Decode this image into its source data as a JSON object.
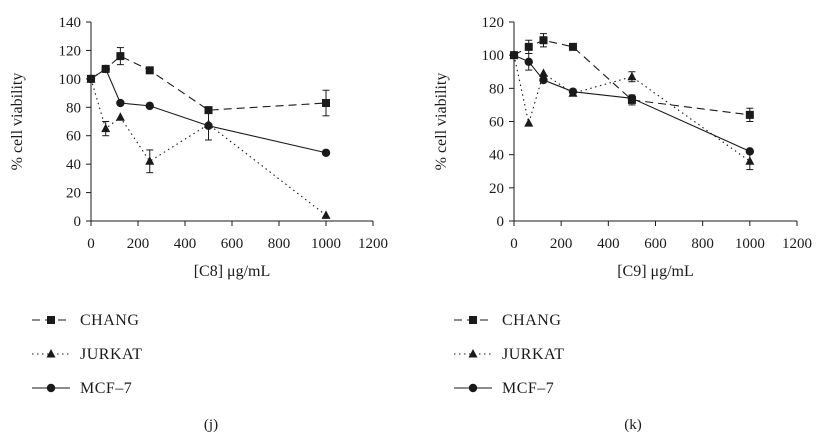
{
  "chart_data": [
    {
      "type": "line",
      "panel_label": "(j)",
      "xlabel": "[C8] μg/mL",
      "ylabel": "% cell viability",
      "xlim": [
        0,
        1200
      ],
      "ylim": [
        0,
        140
      ],
      "xticks": [
        0,
        200,
        400,
        600,
        800,
        1000,
        1200
      ],
      "yticks": [
        0,
        20,
        40,
        60,
        80,
        100,
        120,
        140
      ],
      "grid": false,
      "legend": "below",
      "series": [
        {
          "name": "CHANG",
          "style": "dashed",
          "marker": "square",
          "points": [
            {
              "x": 0,
              "y": 100,
              "err": 0
            },
            {
              "x": 62.5,
              "y": 107,
              "err": 2
            },
            {
              "x": 125,
              "y": 116,
              "err": 6
            },
            {
              "x": 250,
              "y": 106,
              "err": 0
            },
            {
              "x": 500,
              "y": 78,
              "err": 0
            },
            {
              "x": 1000,
              "y": 83,
              "err": 9
            }
          ]
        },
        {
          "name": "JURKAT",
          "style": "dotted",
          "marker": "triangle",
          "points": [
            {
              "x": 0,
              "y": 100,
              "err": 0
            },
            {
              "x": 62.5,
              "y": 65,
              "err": 5
            },
            {
              "x": 125,
              "y": 73,
              "err": 0
            },
            {
              "x": 250,
              "y": 42,
              "err": 8
            },
            {
              "x": 500,
              "y": 68,
              "err": 0
            },
            {
              "x": 1000,
              "y": 4,
              "err": 0
            }
          ]
        },
        {
          "name": "MCF–7",
          "style": "solid",
          "marker": "circle",
          "points": [
            {
              "x": 0,
              "y": 100,
              "err": 0
            },
            {
              "x": 62.5,
              "y": 107,
              "err": 0
            },
            {
              "x": 125,
              "y": 83,
              "err": 0
            },
            {
              "x": 250,
              "y": 81,
              "err": 0
            },
            {
              "x": 500,
              "y": 67,
              "err": 10
            },
            {
              "x": 1000,
              "y": 48,
              "err": 0
            }
          ]
        }
      ]
    },
    {
      "type": "line",
      "panel_label": "(k)",
      "xlabel": "[C9] μg/mL",
      "ylabel": "% cell viability",
      "xlim": [
        0,
        1200
      ],
      "ylim": [
        0,
        120
      ],
      "xticks": [
        0,
        200,
        400,
        600,
        800,
        1000,
        1200
      ],
      "yticks": [
        0,
        20,
        40,
        60,
        80,
        100,
        120
      ],
      "grid": false,
      "legend": "below",
      "series": [
        {
          "name": "CHANG",
          "style": "dashed",
          "marker": "square",
          "points": [
            {
              "x": 0,
              "y": 100,
              "err": 0
            },
            {
              "x": 62.5,
              "y": 105,
              "err": 4
            },
            {
              "x": 125,
              "y": 109,
              "err": 4
            },
            {
              "x": 250,
              "y": 105,
              "err": 0
            },
            {
              "x": 500,
              "y": 73,
              "err": 3
            },
            {
              "x": 1000,
              "y": 64,
              "err": 4
            }
          ]
        },
        {
          "name": "JURKAT",
          "style": "dotted",
          "marker": "triangle",
          "points": [
            {
              "x": 0,
              "y": 100,
              "err": 0
            },
            {
              "x": 62.5,
              "y": 59,
              "err": 0
            },
            {
              "x": 125,
              "y": 89,
              "err": 0
            },
            {
              "x": 250,
              "y": 77,
              "err": 0
            },
            {
              "x": 500,
              "y": 87,
              "err": 3
            },
            {
              "x": 1000,
              "y": 36,
              "err": 5
            }
          ]
        },
        {
          "name": "MCF–7",
          "style": "solid",
          "marker": "circle",
          "points": [
            {
              "x": 0,
              "y": 100,
              "err": 0
            },
            {
              "x": 62.5,
              "y": 96,
              "err": 5
            },
            {
              "x": 125,
              "y": 85,
              "err": 0
            },
            {
              "x": 250,
              "y": 78,
              "err": 0
            },
            {
              "x": 500,
              "y": 74,
              "err": 0
            },
            {
              "x": 1000,
              "y": 42,
              "err": 0
            }
          ]
        }
      ]
    }
  ]
}
